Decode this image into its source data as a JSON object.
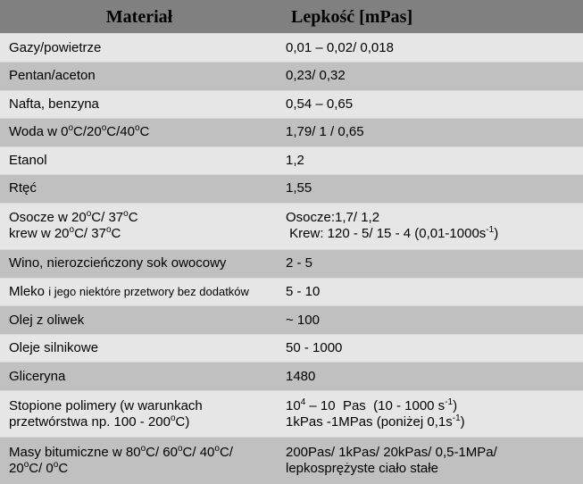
{
  "headers": {
    "material": "Materiał",
    "viscosity": "Lepkość [mPas]"
  },
  "rows": [
    {
      "material": "Gazy/powietrze",
      "viscosity": "0,01 – 0,02/ 0,018"
    },
    {
      "material": "Pentan/aceton",
      "viscosity": "0,23/ 0,32"
    },
    {
      "material": "Nafta, benzyna",
      "viscosity": "0,54 – 0,65"
    },
    {
      "material_html": "Woda w 0<sup>o</sup>C/20<sup>o</sup>C/40<sup>o</sup>C",
      "viscosity": "1,79/ 1 / 0,65"
    },
    {
      "material": "Etanol",
      "viscosity": "1,2"
    },
    {
      "material": "Rtęć",
      "viscosity": "1,55"
    },
    {
      "material_html": "Osocze w 20<sup>o</sup>C/ 37<sup>o</sup>C<br>krew w 20<sup>o</sup>C/ 37<sup>o</sup>C",
      "viscosity_html": "Osocze:1,7/ 1,2<br>&nbsp;Krew: 120 - 5/ 15 - 4 (0,01-1000s<sup>-1</sup>)"
    },
    {
      "material": "Wino, nierozcieńczony sok owocowy",
      "viscosity": "2 - 5"
    },
    {
      "material_html": "Mleko <span class=\"small\">i jego niektóre przetwory bez dodatków</span>",
      "viscosity": "5 - 10"
    },
    {
      "material": "Olej z oliwek",
      "viscosity": "~ 100"
    },
    {
      "material": "Oleje silnikowe",
      "viscosity": "50 - 1000"
    },
    {
      "material": "Gliceryna",
      "viscosity": "1480"
    },
    {
      "material_html": "Stopione polimery (w warunkach przetwórstwa np. 100 - 200<sup>o</sup>C)",
      "viscosity_html": "10<sup>4</sup> – 10&nbsp;&nbsp;Pas&nbsp;&nbsp;(10 - 1000 s<sup>-1</sup>)<br>1kPas -1MPas (poniżej 0,1s<sup>-1</sup>)"
    },
    {
      "material_html": "Masy bitumiczne w 80<sup>o</sup>C/ 60<sup>o</sup>C/ 40<sup>o</sup>C/ 20<sup>o</sup>C/ 0<sup>o</sup>C",
      "viscosity_html": "200Pas/ 1kPas/ 20kPas/ 0,5-1MPa/ lepkosprężyste ciało stałe"
    }
  ]
}
